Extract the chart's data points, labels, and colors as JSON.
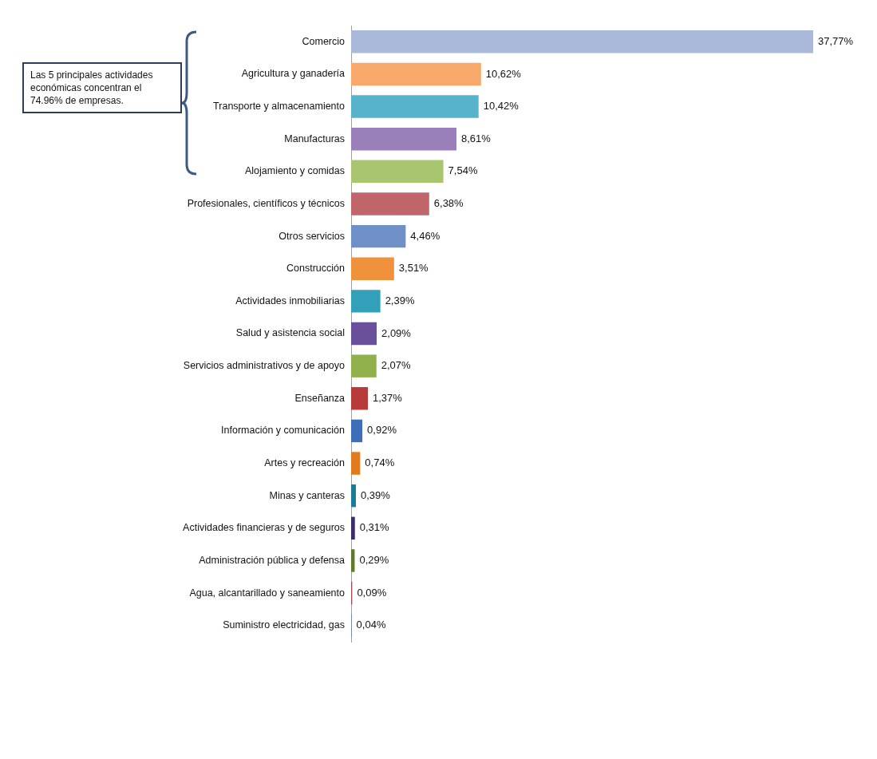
{
  "chart_data": {
    "type": "bar",
    "orientation": "horizontal",
    "categories": [
      "Comercio",
      "Agricultura y ganadería",
      "Transporte y almacenamiento",
      "Manufacturas",
      "Alojamiento y comidas",
      "Profesionales, científicos y técnicos",
      "Otros servicios",
      "Construcción",
      "Actividades inmobiliarias",
      "Salud y asistencia social",
      "Servicios administrativos y de apoyo",
      "Enseñanza",
      "Información y comunicación",
      "Artes y recreación",
      "Minas y canteras",
      "Actividades financieras y de seguros",
      "Administración pública y defensa",
      "Agua, alcantarillado y saneamiento",
      "Suministro electricidad, gas"
    ],
    "values": [
      37.77,
      10.62,
      10.42,
      8.61,
      7.54,
      6.38,
      4.46,
      3.51,
      2.39,
      2.09,
      2.07,
      1.37,
      0.92,
      0.74,
      0.39,
      0.31,
      0.29,
      0.09,
      0.04
    ],
    "value_labels": [
      "37,77%",
      "10,62%",
      "10,42%",
      "8,61%",
      "7,54%",
      "6,38%",
      "4,46%",
      "3,51%",
      "2,39%",
      "2,09%",
      "2,07%",
      "1,37%",
      "0,92%",
      "0,74%",
      "0,39%",
      "0,31%",
      "0,29%",
      "0,09%",
      "0,04%"
    ],
    "colors": [
      "#aab8d9",
      "#f9a86b",
      "#57b3cc",
      "#9a7fba",
      "#a9c66e",
      "#c0666a",
      "#6f8fc9",
      "#f0913c",
      "#31a0b8",
      "#6a4f9a",
      "#8fb04a",
      "#b83a3a",
      "#3d6fb8",
      "#e07b20",
      "#1f7a9a",
      "#3e2c6a",
      "#5e7a2a",
      "#a05050",
      "#5a7ab0"
    ],
    "annotations": [
      "Las 5 principales actividades económicas concentran el 74.96% de empresas."
    ],
    "legend": false
  }
}
